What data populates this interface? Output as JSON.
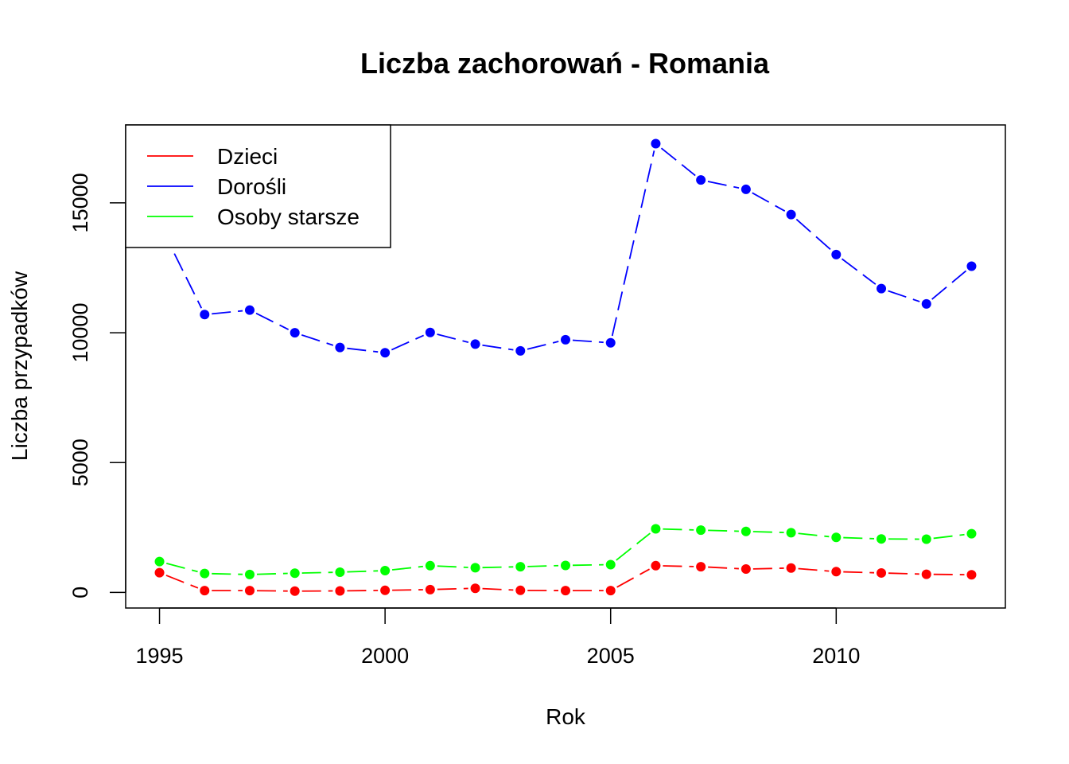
{
  "chart_data": {
    "type": "line",
    "title": "Liczba zachorowań -  Romania",
    "xlabel": "Rok",
    "ylabel": "Liczba przypadków",
    "xlim": [
      1994.25,
      2013.75
    ],
    "ylim": [
      -600,
      18000
    ],
    "x_ticks": [
      1995,
      2000,
      2005,
      2010
    ],
    "x_tick_labels": [
      "1995",
      "2000",
      "2005",
      "2010"
    ],
    "y_ticks": [
      0,
      5000,
      10000,
      15000
    ],
    "y_tick_labels": [
      "0",
      "5000",
      "10000",
      "15000"
    ],
    "grid": false,
    "legend_position": "top-left",
    "x": [
      1995,
      1996,
      1997,
      1998,
      1999,
      2000,
      2001,
      2002,
      2003,
      2004,
      2005,
      2006,
      2007,
      2008,
      2009,
      2010,
      2011,
      2012,
      2013
    ],
    "series": [
      {
        "name": "Dzieci",
        "color": "#ff0000",
        "values": [
          760,
          70,
          70,
          50,
          60,
          80,
          110,
          160,
          80,
          70,
          70,
          1030,
          990,
          900,
          940,
          800,
          750,
          700,
          680
        ]
      },
      {
        "name": "Dorośli",
        "color": "#0000ff",
        "values": [
          14200,
          10700,
          10870,
          10000,
          9430,
          9230,
          10010,
          9560,
          9300,
          9730,
          9610,
          17280,
          15880,
          15520,
          14550,
          13010,
          11700,
          11110,
          12560
        ]
      },
      {
        "name": "Osoby starsze",
        "color": "#00ff00",
        "values": [
          1190,
          730,
          690,
          740,
          780,
          840,
          1030,
          950,
          990,
          1040,
          1070,
          2450,
          2400,
          2350,
          2300,
          2120,
          2060,
          2050,
          2260
        ]
      }
    ]
  }
}
